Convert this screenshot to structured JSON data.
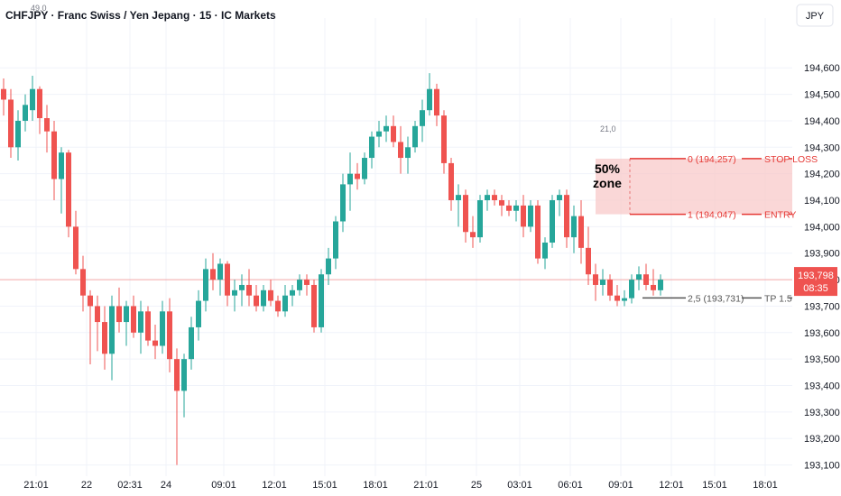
{
  "header": {
    "title": "CHFJPY · Franc Swiss / Yen Jepang · 15 · IC Markets",
    "currency_button": "JPY"
  },
  "colors": {
    "up": "#26a69a",
    "down": "#ef5350",
    "zone_fill": "#f8c9c9",
    "fib_red": "#e53935",
    "fib_gray": "#555555",
    "price_line": "#f7a9a7",
    "badge": "#ef5350"
  },
  "chart_data": {
    "type": "candlestick",
    "symbol": "CHFJPY",
    "interval": "15",
    "ylim": [
      193.085,
      194.72
    ],
    "y_ticks": [
      "194,600",
      "194,500",
      "194,400",
      "194,300",
      "194,200",
      "194,100",
      "194,000",
      "193,900",
      "193,800",
      "193,700",
      "193,600",
      "193,500",
      "193,400",
      "193,300",
      "193,200",
      "193,100"
    ],
    "x_ticks": [
      {
        "label": "21:01",
        "index": 5
      },
      {
        "label": "22",
        "index": 12
      },
      {
        "label": "02:31",
        "index": 18
      },
      {
        "label": "24",
        "index": 23
      },
      {
        "label": "09:01",
        "index": 31
      },
      {
        "label": "12:01",
        "index": 38
      },
      {
        "label": "15:01",
        "index": 45
      },
      {
        "label": "18:01",
        "index": 52
      },
      {
        "label": "21:01",
        "index": 59
      },
      {
        "label": "25",
        "index": 66
      },
      {
        "label": "03:01",
        "index": 72
      },
      {
        "label": "06:01",
        "index": 79
      },
      {
        "label": "09:01",
        "index": 86
      },
      {
        "label": "12:01",
        "index": 93
      },
      {
        "label": "15:01",
        "index": 99
      },
      {
        "label": "18:01",
        "index": 106
      }
    ],
    "ohlc": [
      [
        194.52,
        194.56,
        194.42,
        194.48
      ],
      [
        194.48,
        194.52,
        194.26,
        194.3
      ],
      [
        194.3,
        194.44,
        194.25,
        194.4
      ],
      [
        194.4,
        194.5,
        194.36,
        194.46
      ],
      [
        194.44,
        194.57,
        194.4,
        194.52
      ],
      [
        194.52,
        194.53,
        194.35,
        194.41
      ],
      [
        194.41,
        194.46,
        194.28,
        194.36
      ],
      [
        194.36,
        194.4,
        194.1,
        194.18
      ],
      [
        194.18,
        194.3,
        194.05,
        194.28
      ],
      [
        194.28,
        194.29,
        193.96,
        194.0
      ],
      [
        194.0,
        194.06,
        193.82,
        193.84
      ],
      [
        193.84,
        193.89,
        193.68,
        193.74
      ],
      [
        193.74,
        193.76,
        193.48,
        193.7
      ],
      [
        193.7,
        193.74,
        193.53,
        193.64
      ],
      [
        193.64,
        193.7,
        193.46,
        193.52
      ],
      [
        193.52,
        193.74,
        193.42,
        193.7
      ],
      [
        193.7,
        193.77,
        193.6,
        193.64
      ],
      [
        193.64,
        193.72,
        193.55,
        193.7
      ],
      [
        193.7,
        193.74,
        193.58,
        193.6
      ],
      [
        193.6,
        193.72,
        193.52,
        193.68
      ],
      [
        193.68,
        193.7,
        193.55,
        193.57
      ],
      [
        193.57,
        193.63,
        193.5,
        193.55
      ],
      [
        193.55,
        193.72,
        193.52,
        193.68
      ],
      [
        193.68,
        193.73,
        193.45,
        193.5
      ],
      [
        193.5,
        193.54,
        193.1,
        193.38
      ],
      [
        193.38,
        193.52,
        193.28,
        193.5
      ],
      [
        193.5,
        193.66,
        193.46,
        193.62
      ],
      [
        193.62,
        193.76,
        193.57,
        193.72
      ],
      [
        193.72,
        193.88,
        193.68,
        193.84
      ],
      [
        193.84,
        193.9,
        193.76,
        193.8
      ],
      [
        193.8,
        193.88,
        193.74,
        193.86
      ],
      [
        193.86,
        193.87,
        193.7,
        193.74
      ],
      [
        193.74,
        193.8,
        193.68,
        193.76
      ],
      [
        193.76,
        193.82,
        193.7,
        193.78
      ],
      [
        193.78,
        193.84,
        193.7,
        193.74
      ],
      [
        193.74,
        193.78,
        193.68,
        193.7
      ],
      [
        193.7,
        193.78,
        193.68,
        193.76
      ],
      [
        193.76,
        193.8,
        193.7,
        193.72
      ],
      [
        193.72,
        193.74,
        193.66,
        193.68
      ],
      [
        193.68,
        193.78,
        193.66,
        193.74
      ],
      [
        193.74,
        193.78,
        193.7,
        193.76
      ],
      [
        193.76,
        193.82,
        193.74,
        193.8
      ],
      [
        193.8,
        193.82,
        193.74,
        193.78
      ],
      [
        193.78,
        193.8,
        193.6,
        193.62
      ],
      [
        193.62,
        193.84,
        193.6,
        193.82
      ],
      [
        193.82,
        193.92,
        193.78,
        193.88
      ],
      [
        193.88,
        194.04,
        193.84,
        194.02
      ],
      [
        194.02,
        194.2,
        193.98,
        194.16
      ],
      [
        194.16,
        194.28,
        194.06,
        194.2
      ],
      [
        194.2,
        194.24,
        194.14,
        194.18
      ],
      [
        194.18,
        194.28,
        194.16,
        194.26
      ],
      [
        194.26,
        194.36,
        194.22,
        194.34
      ],
      [
        194.34,
        194.4,
        194.3,
        194.36
      ],
      [
        194.36,
        194.42,
        194.32,
        194.38
      ],
      [
        194.38,
        194.42,
        194.3,
        194.32
      ],
      [
        194.32,
        194.38,
        194.2,
        194.26
      ],
      [
        194.26,
        194.34,
        194.2,
        194.3
      ],
      [
        194.3,
        194.4,
        194.28,
        194.38
      ],
      [
        194.38,
        194.48,
        194.32,
        194.44
      ],
      [
        194.44,
        194.58,
        194.42,
        194.52
      ],
      [
        194.52,
        194.54,
        194.38,
        194.42
      ],
      [
        194.42,
        194.44,
        194.2,
        194.24
      ],
      [
        194.24,
        194.26,
        194.06,
        194.1
      ],
      [
        194.1,
        194.16,
        194.0,
        194.12
      ],
      [
        194.12,
        194.14,
        193.94,
        193.98
      ],
      [
        193.98,
        194.04,
        193.92,
        193.96
      ],
      [
        193.96,
        194.12,
        193.94,
        194.1
      ],
      [
        194.1,
        194.14,
        194.06,
        194.12
      ],
      [
        194.12,
        194.14,
        194.08,
        194.1
      ],
      [
        194.1,
        194.12,
        194.04,
        194.08
      ],
      [
        194.08,
        194.1,
        194.04,
        194.06
      ],
      [
        194.06,
        194.1,
        194.02,
        194.08
      ],
      [
        194.08,
        194.12,
        193.96,
        194.0
      ],
      [
        194.0,
        194.1,
        193.98,
        194.08
      ],
      [
        194.08,
        194.1,
        193.86,
        193.88
      ],
      [
        193.88,
        193.96,
        193.84,
        193.94
      ],
      [
        193.94,
        194.12,
        193.92,
        194.1
      ],
      [
        194.1,
        194.14,
        194.04,
        194.12
      ],
      [
        194.12,
        194.14,
        193.92,
        193.96
      ],
      [
        193.96,
        194.08,
        193.9,
        194.04
      ],
      [
        194.04,
        194.1,
        193.86,
        193.92
      ],
      [
        193.92,
        194.0,
        193.78,
        193.82
      ],
      [
        193.82,
        193.86,
        193.72,
        193.78
      ],
      [
        193.78,
        193.84,
        193.74,
        193.8
      ],
      [
        193.8,
        193.82,
        193.72,
        193.74
      ],
      [
        193.74,
        193.78,
        193.7,
        193.72
      ],
      [
        193.72,
        193.76,
        193.7,
        193.73
      ],
      [
        193.73,
        193.82,
        193.71,
        193.8
      ],
      [
        193.8,
        193.85,
        193.76,
        193.82
      ],
      [
        193.82,
        193.86,
        193.76,
        193.78
      ],
      [
        193.78,
        193.84,
        193.74,
        193.76
      ],
      [
        193.76,
        193.82,
        193.74,
        193.8
      ]
    ],
    "current_price": "193,798",
    "countdown": "08:35",
    "annotations": {
      "top_left_small": "49,0",
      "zone_small": "21,0",
      "zone_label_line1": "50%",
      "zone_label_line2": "zone",
      "fib_levels": [
        {
          "level_label": "0 (194,257)",
          "tag": "STOP LOSS",
          "price": 194.257,
          "color_key": "fib_red"
        },
        {
          "level_label": "1 (194,047)",
          "tag": "ENTRY",
          "price": 194.047,
          "color_key": "fib_red"
        },
        {
          "level_label": "2,5 (193,731)",
          "tag": "TP 1.5",
          "price": 193.731,
          "color_key": "fib_gray"
        }
      ]
    }
  }
}
